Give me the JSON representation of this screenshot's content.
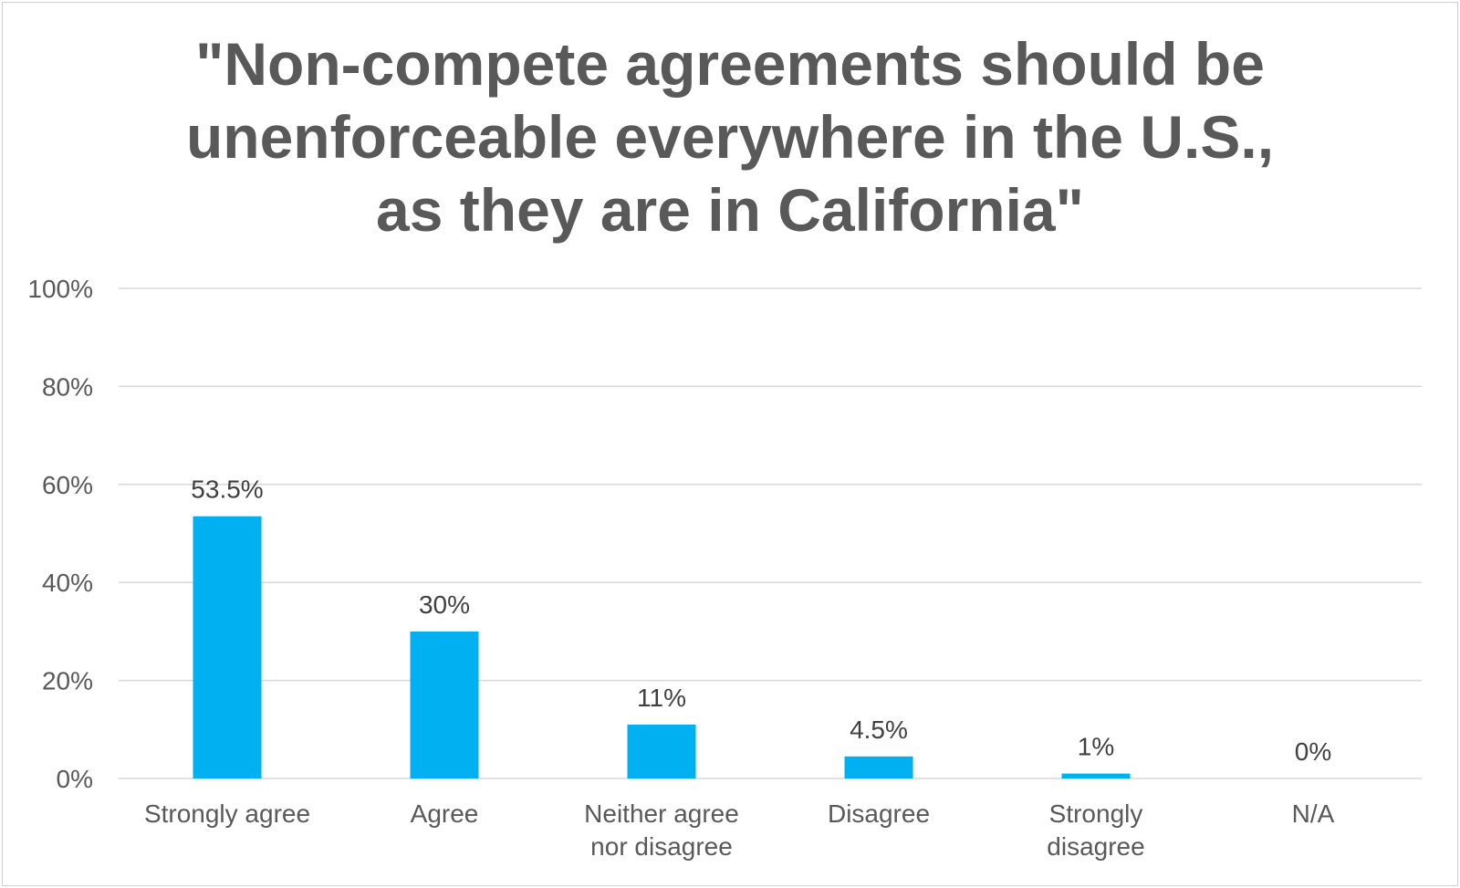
{
  "chart_data": {
    "type": "bar",
    "title_lines": [
      "\"Non-compete agreements should be",
      "unenforceable everywhere in the U.S.,",
      "as they are in California\""
    ],
    "categories": [
      [
        "Strongly agree"
      ],
      [
        "Agree"
      ],
      [
        "Neither agree",
        "nor disagree"
      ],
      [
        "Disagree"
      ],
      [
        "Strongly",
        "disagree"
      ],
      [
        "N/A"
      ]
    ],
    "values": [
      53.5,
      30,
      11,
      4.5,
      1,
      0
    ],
    "data_labels": [
      "53.5%",
      "30%",
      "11%",
      "4.5%",
      "1%",
      "0%"
    ],
    "y_ticks": [
      0,
      20,
      40,
      60,
      80,
      100
    ],
    "y_tick_labels": [
      "0%",
      "20%",
      "40%",
      "60%",
      "80%",
      "100%"
    ],
    "ylim": [
      0,
      100
    ],
    "grid": true,
    "bar_color": "#00b0f0",
    "grid_color": "#d9d9d9"
  }
}
